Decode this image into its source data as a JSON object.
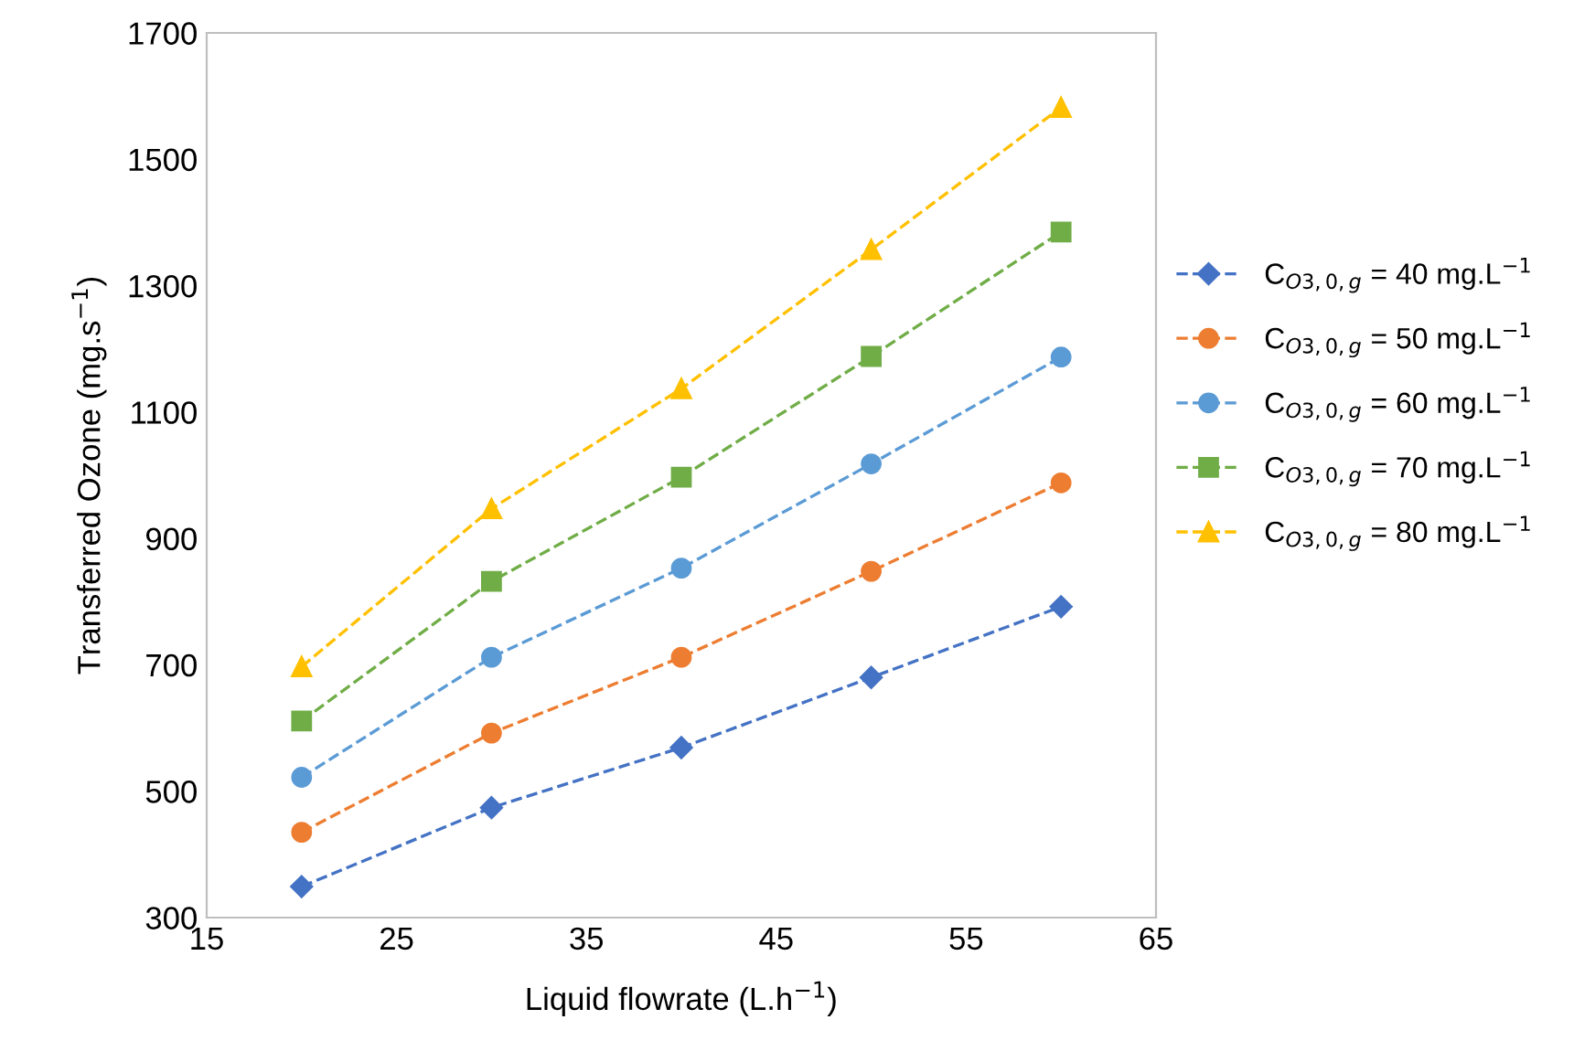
{
  "chart_data": {
    "type": "line",
    "xlabel": "Liquid flowrate (L.h$^{−1}$)",
    "ylabel": "Transferred Ozone (mg.s$^{−1}$)",
    "x": [
      20,
      30,
      40,
      50,
      60
    ],
    "xlim": [
      15,
      65
    ],
    "xticks": [
      15,
      25,
      35,
      45,
      55,
      65
    ],
    "ylim": [
      300,
      1700
    ],
    "yticks": [
      300,
      500,
      700,
      900,
      1100,
      1300,
      1500,
      1700
    ],
    "grid": false,
    "legend": "right",
    "line_style": "dashed",
    "series": [
      {
        "name": "C$_{O3,0,g}$ = 40 mg.L$^{−1}$",
        "color": "#4472c4",
        "marker": "diamond",
        "values": [
          349,
          474,
          569,
          680,
          792
        ]
      },
      {
        "name": "C$_{O3,0,g}$ = 50 mg.L$^{−1}$",
        "color": "#ed7d31",
        "marker": "circle",
        "values": [
          435,
          592,
          712,
          848,
          988
        ]
      },
      {
        "name": "C$_{O3,0,g}$ = 60 mg.L$^{−1}$",
        "color": "#5b9bd5",
        "marker": "circle",
        "values": [
          522,
          712,
          853,
          1018,
          1187
        ]
      },
      {
        "name": "C$_{O3,0,g}$ = 70 mg.L$^{−1}$",
        "color": "#70ad47",
        "marker": "square",
        "values": [
          611,
          832,
          997,
          1188,
          1385
        ]
      },
      {
        "name": "C$_{O3,0,g}$ = 80 mg.L$^{−1}$",
        "color": "#ffc000",
        "marker": "triangle",
        "values": [
          697,
          947,
          1137,
          1357,
          1582
        ]
      }
    ]
  }
}
